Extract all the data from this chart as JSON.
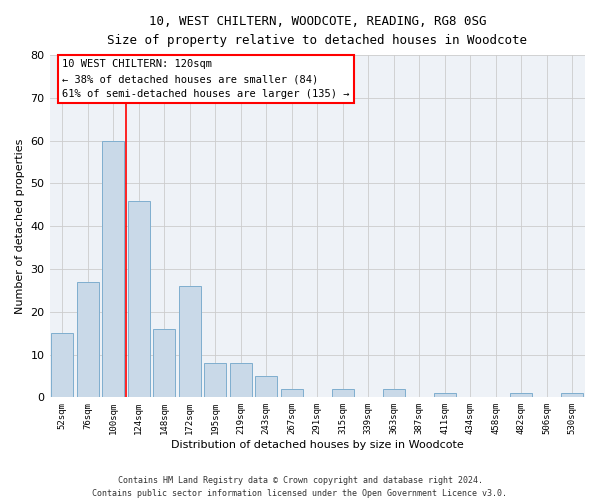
{
  "title1": "10, WEST CHILTERN, WOODCOTE, READING, RG8 0SG",
  "title2": "Size of property relative to detached houses in Woodcote",
  "xlabel": "Distribution of detached houses by size in Woodcote",
  "ylabel": "Number of detached properties",
  "bar_labels": [
    "52sqm",
    "76sqm",
    "100sqm",
    "124sqm",
    "148sqm",
    "172sqm",
    "195sqm",
    "219sqm",
    "243sqm",
    "267sqm",
    "291sqm",
    "315sqm",
    "339sqm",
    "363sqm",
    "387sqm",
    "411sqm",
    "434sqm",
    "458sqm",
    "482sqm",
    "506sqm",
    "530sqm"
  ],
  "bar_values": [
    15,
    27,
    60,
    46,
    16,
    26,
    8,
    8,
    5,
    2,
    0,
    2,
    0,
    2,
    0,
    1,
    0,
    0,
    1,
    0,
    1
  ],
  "bar_color": "#c9d9e8",
  "bar_edge_color": "#7faecf",
  "grid_color": "#cccccc",
  "vline_x": 2.5,
  "vline_color": "red",
  "annotation_text": "10 WEST CHILTERN: 120sqm\n← 38% of detached houses are smaller (84)\n61% of semi-detached houses are larger (135) →",
  "annotation_box_color": "white",
  "annotation_box_edge": "red",
  "ylim": [
    0,
    80
  ],
  "yticks": [
    0,
    10,
    20,
    30,
    40,
    50,
    60,
    70,
    80
  ],
  "footnote1": "Contains HM Land Registry data © Crown copyright and database right 2024.",
  "footnote2": "Contains public sector information licensed under the Open Government Licence v3.0.",
  "bg_color": "#eef2f7"
}
